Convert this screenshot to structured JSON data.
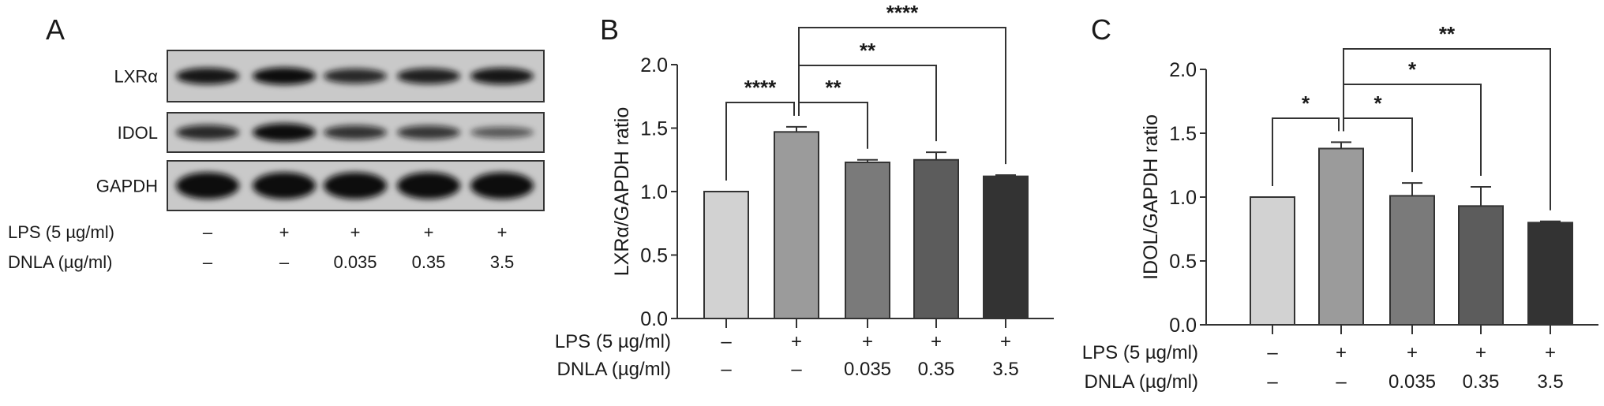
{
  "panel_a": {
    "letter": "A",
    "blot_rows": [
      "LXRα",
      "IDOL",
      "GAPDH"
    ],
    "band_intensity": [
      [
        0.85,
        0.9,
        0.75,
        0.8,
        0.85
      ],
      [
        0.75,
        0.95,
        0.7,
        0.68,
        0.5
      ],
      [
        1.0,
        1.0,
        1.0,
        1.0,
        1.0
      ]
    ],
    "condition_labels": [
      "LPS (5 µg/ml)",
      "DNLA (µg/ml)"
    ],
    "lps": [
      "–",
      "+",
      "+",
      "+",
      "+"
    ],
    "dnla": [
      "–",
      "–",
      "0.035",
      "0.35",
      "3.5"
    ]
  },
  "chart_data": [
    {
      "type": "bar",
      "panel": "B",
      "ylabel": "LXRα/GAPDH ratio",
      "ylim": [
        0,
        2.0
      ],
      "yticks": [
        "0.0",
        "0.5",
        "1.0",
        "1.5",
        "2.0"
      ],
      "values": [
        1.0,
        1.47,
        1.23,
        1.25,
        1.12
      ],
      "errors": [
        0,
        0.04,
        0.02,
        0.06,
        0.01
      ],
      "colors": [
        "#d2d2d2",
        "#9b9b9b",
        "#7a7a7a",
        "#5c5c5c",
        "#333333"
      ],
      "condition_labels": [
        "LPS (5 µg/ml)",
        "DNLA (µg/ml)"
      ],
      "lps": [
        "–",
        "+",
        "+",
        "+",
        "+"
      ],
      "dnla": [
        "–",
        "–",
        "0.035",
        "0.35",
        "3.5"
      ],
      "significance": [
        {
          "from": 0,
          "to": 1,
          "label": "****"
        },
        {
          "from": 1,
          "to": 2,
          "label": "**"
        },
        {
          "from": 1,
          "to": 3,
          "label": "**"
        },
        {
          "from": 1,
          "to": 4,
          "label": "****"
        }
      ]
    },
    {
      "type": "bar",
      "panel": "C",
      "ylabel": "IDOL/GAPDH ratio",
      "ylim": [
        0,
        2.0
      ],
      "yticks": [
        "0.0",
        "0.5",
        "1.0",
        "1.5",
        "2.0"
      ],
      "values": [
        1.0,
        1.38,
        1.01,
        0.93,
        0.8
      ],
      "errors": [
        0,
        0.05,
        0.1,
        0.15,
        0.01
      ],
      "colors": [
        "#d2d2d2",
        "#9b9b9b",
        "#7a7a7a",
        "#5c5c5c",
        "#333333"
      ],
      "condition_labels": [
        "LPS (5 µg/ml)",
        "DNLA (µg/ml)"
      ],
      "lps": [
        "–",
        "+",
        "+",
        "+",
        "+"
      ],
      "dnla": [
        "–",
        "–",
        "0.035",
        "0.35",
        "3.5"
      ],
      "significance": [
        {
          "from": 0,
          "to": 1,
          "label": "*"
        },
        {
          "from": 1,
          "to": 2,
          "label": "*"
        },
        {
          "from": 1,
          "to": 3,
          "label": "*"
        },
        {
          "from": 1,
          "to": 4,
          "label": "**"
        }
      ]
    }
  ]
}
